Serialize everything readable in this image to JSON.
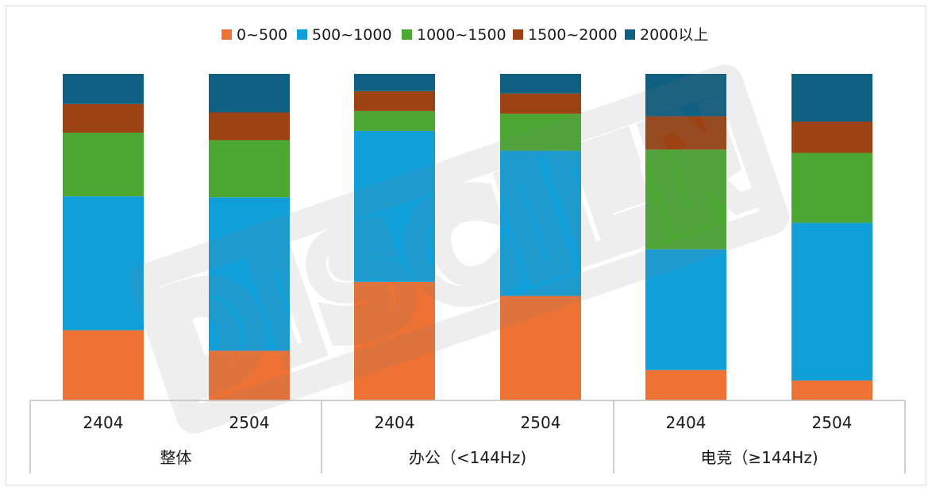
{
  "chart_data": {
    "type": "bar",
    "stacked": true,
    "normalized": true,
    "groups": [
      {
        "label": "整体",
        "categories": [
          "2404",
          "2504"
        ]
      },
      {
        "label": "办公（<144Hz)",
        "categories": [
          "2404",
          "2504"
        ]
      },
      {
        "label": "电竞（≥144Hz)",
        "categories": [
          "2404",
          "2504"
        ]
      }
    ],
    "categories": [
      "2404",
      "2504",
      "2404",
      "2504",
      "2404",
      "2504"
    ],
    "series": [
      {
        "name": "0~500",
        "color": "#ED7233",
        "values": [
          21.5,
          15.2,
          36.3,
          32.0,
          9.3,
          6.1
        ]
      },
      {
        "name": "500~1000",
        "color": "#119FDA",
        "values": [
          41.0,
          47.0,
          46.2,
          44.5,
          37.0,
          48.3
        ]
      },
      {
        "name": "1000~1500",
        "color": "#4CA833",
        "values": [
          19.5,
          17.5,
          6.1,
          11.3,
          30.5,
          21.4
        ]
      },
      {
        "name": "1500~2000",
        "color": "#9C4213",
        "values": [
          8.8,
          8.5,
          6.1,
          6.2,
          10.2,
          9.6
        ]
      },
      {
        "name": "2000以上",
        "color": "#0E5F82",
        "values": [
          9.2,
          11.8,
          5.3,
          6.0,
          13.0,
          14.6
        ]
      }
    ],
    "ylim": [
      0,
      100
    ],
    "legend_position": "top",
    "grid": false
  },
  "watermark": {
    "text": "DISCIEN"
  }
}
